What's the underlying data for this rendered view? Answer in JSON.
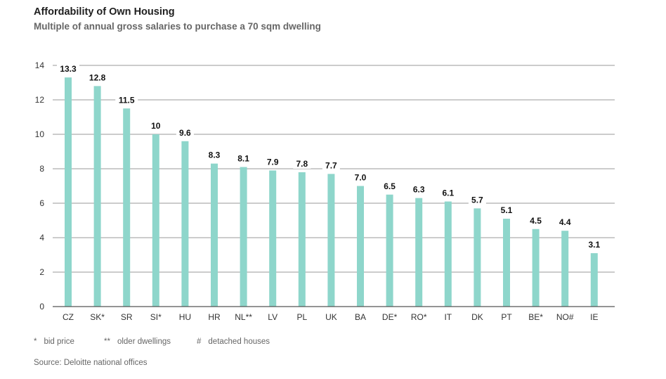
{
  "title": "Affordability of Own Housing",
  "subtitle": "Multiple of annual gross salaries to purchase a 70 sqm dwelling",
  "notes": [
    {
      "symbol": "*",
      "text": "bid price"
    },
    {
      "symbol": "**",
      "text": "older dwellings"
    },
    {
      "symbol": "#",
      "text": "detached houses"
    }
  ],
  "source": "Source: Deloitte national offices",
  "colors": {
    "bar": "#8ed6cb",
    "grid": "#9a9a9a",
    "axis": "#555555"
  },
  "chart_data": {
    "type": "bar",
    "categories": [
      "CZ",
      "SK*",
      "SR",
      "SI*",
      "HU",
      "HR",
      "NL**",
      "LV",
      "PL",
      "UK",
      "BA",
      "DE*",
      "RO*",
      "IT",
      "DK",
      "PT",
      "BE*",
      "NO#",
      "IE"
    ],
    "values": [
      13.3,
      12.8,
      11.5,
      10,
      9.6,
      8.3,
      8.1,
      7.9,
      7.8,
      7.7,
      7.0,
      6.5,
      6.3,
      6.1,
      5.7,
      5.1,
      4.5,
      4.4,
      3.1
    ],
    "data_labels": [
      "13.3",
      "12.8",
      "11.5",
      "10",
      "9.6",
      "8.3",
      "8.1",
      "7.9",
      "7.8",
      "7.7",
      "7.0",
      "6.5",
      "6.3",
      "6.1",
      "5.7",
      "5.1",
      "4.5",
      "4.4",
      "3.1"
    ],
    "ylim": [
      0,
      14
    ],
    "yticks": [
      0,
      2,
      4,
      6,
      8,
      10,
      12,
      14
    ],
    "grid": true,
    "legend": "none"
  }
}
